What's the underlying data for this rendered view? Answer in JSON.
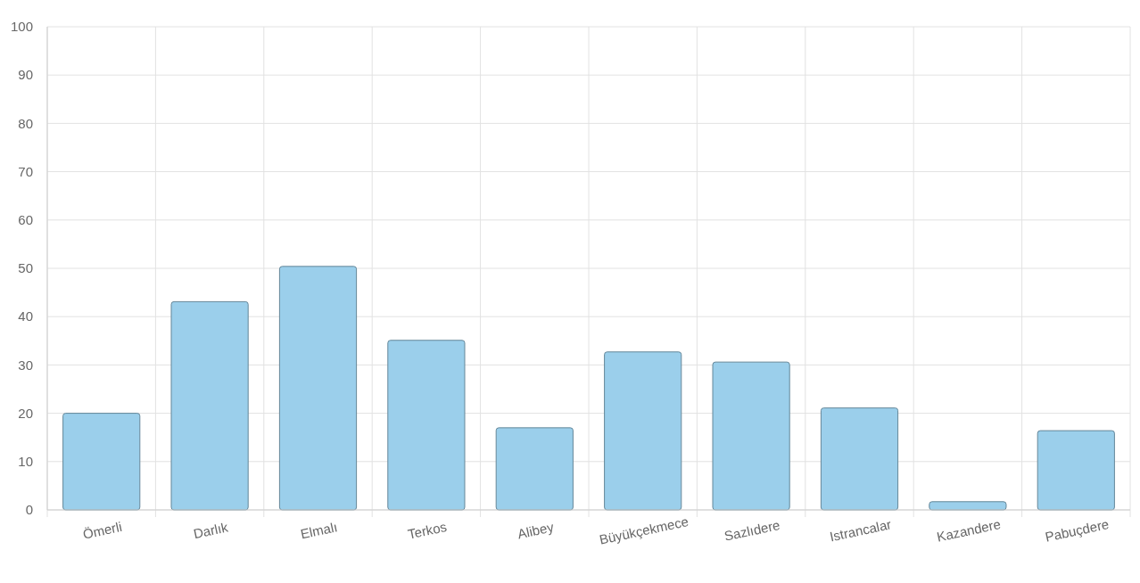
{
  "chart_data": {
    "type": "bar",
    "categories": [
      "Ömerli",
      "Darlık",
      "Elmalı",
      "Terkos",
      "Alibey",
      "Büyükçekmece",
      "Sazlıdere",
      "Istrancalar",
      "Kazandere",
      "Pabuçdere"
    ],
    "values": [
      20,
      43.1,
      50.4,
      35.1,
      17,
      32.7,
      30.6,
      21.1,
      1.7,
      16.4
    ],
    "color": "#9bcfeb",
    "ylim": [
      0,
      100
    ],
    "yticks": [
      0,
      10,
      20,
      30,
      40,
      50,
      60,
      70,
      80,
      90,
      100
    ],
    "grid": true
  }
}
